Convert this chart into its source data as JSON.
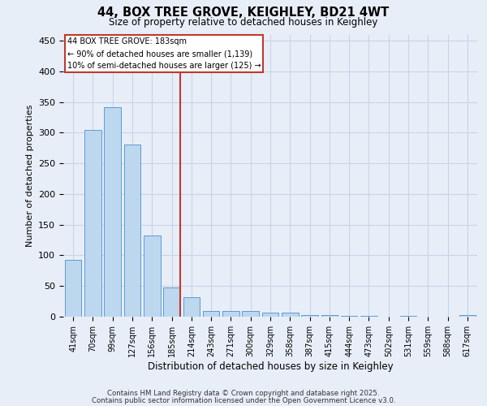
{
  "title_line1": "44, BOX TREE GROVE, KEIGHLEY, BD21 4WT",
  "title_line2": "Size of property relative to detached houses in Keighley",
  "xlabel": "Distribution of detached houses by size in Keighley",
  "ylabel": "Number of detached properties",
  "categories": [
    "41sqm",
    "70sqm",
    "99sqm",
    "127sqm",
    "156sqm",
    "185sqm",
    "214sqm",
    "243sqm",
    "271sqm",
    "300sqm",
    "329sqm",
    "358sqm",
    "387sqm",
    "415sqm",
    "444sqm",
    "473sqm",
    "502sqm",
    "531sqm",
    "559sqm",
    "588sqm",
    "617sqm"
  ],
  "values": [
    93,
    305,
    342,
    280,
    133,
    47,
    32,
    9,
    9,
    9,
    7,
    7,
    3,
    2,
    1,
    1,
    0,
    1,
    0,
    0,
    3
  ],
  "bar_color": "#bdd7ee",
  "bar_edge_color": "#5b9bd5",
  "vline_color": "#c0392b",
  "annotation_text": "44 BOX TREE GROVE: 183sqm\n← 90% of detached houses are smaller (1,139)\n10% of semi-detached houses are larger (125) →",
  "annotation_box_color": "#c0392b",
  "ylim": [
    0,
    460
  ],
  "yticks": [
    0,
    50,
    100,
    150,
    200,
    250,
    300,
    350,
    400,
    450
  ],
  "grid_color": "#c8d4e8",
  "background_color": "#e8eef8",
  "footer_line1": "Contains HM Land Registry data © Crown copyright and database right 2025.",
  "footer_line2": "Contains public sector information licensed under the Open Government Licence v3.0."
}
